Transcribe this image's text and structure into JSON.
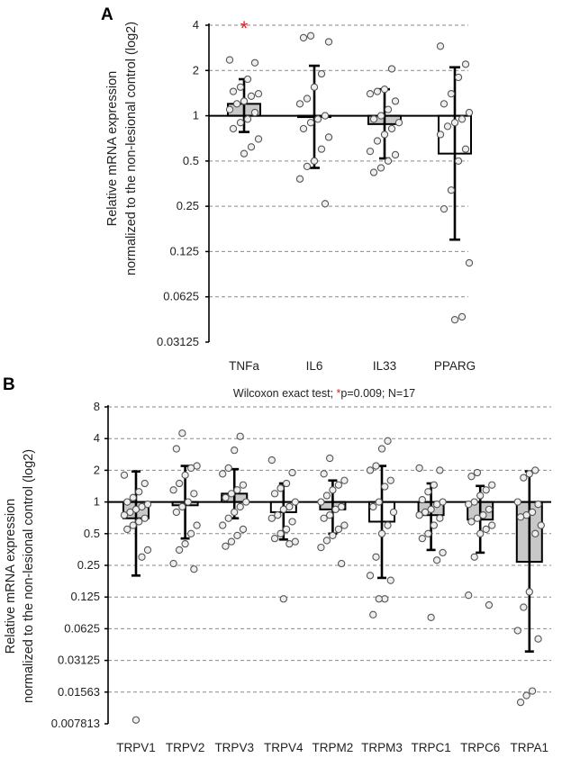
{
  "chart_data": [
    {
      "panel": "A",
      "type": "bar",
      "scale": "log2",
      "ylabel_lines": [
        "Relative mRNA expression",
        "normalized to the non-lesional control (log2)"
      ],
      "ytick_values": [
        0.03125,
        0.0625,
        0.125,
        0.25,
        0.5,
        1,
        2,
        4
      ],
      "ytick_labels": [
        "0.03125",
        "0.0625",
        "0.125",
        "0.25",
        "0.5",
        "1",
        "2",
        "4"
      ],
      "ylim": [
        0.03125,
        4
      ],
      "baseline": 1,
      "categories": [
        "TNFa",
        "IL6",
        "IL33",
        "PPARG"
      ],
      "values": [
        1.2,
        1.0,
        0.88,
        0.56
      ],
      "err_low": [
        0.78,
        0.45,
        0.52,
        0.15
      ],
      "err_high": [
        1.75,
        2.15,
        1.5,
        2.1
      ],
      "bar_fill": [
        "#c8c8c8",
        "#ffffff",
        "#c8c8c8",
        "#ffffff"
      ],
      "significance": [
        "*",
        "",
        "",
        ""
      ],
      "points": [
        [
          2.35,
          2.25,
          1.75,
          1.55,
          1.45,
          1.4,
          1.35,
          1.25,
          1.2,
          1.1,
          1.05,
          0.95,
          0.9,
          0.82,
          0.7,
          0.62,
          0.56
        ],
        [
          3.4,
          3.3,
          3.1,
          1.9,
          1.55,
          1.3,
          1.2,
          1.0,
          0.95,
          0.9,
          0.82,
          0.72,
          0.6,
          0.5,
          0.46,
          0.38,
          0.26
        ],
        [
          2.05,
          1.5,
          1.45,
          1.4,
          1.25,
          1.1,
          1.0,
          0.95,
          0.9,
          0.82,
          0.75,
          0.68,
          0.58,
          0.55,
          0.5,
          0.45,
          0.42
        ],
        [
          2.9,
          2.2,
          1.8,
          1.4,
          1.2,
          1.05,
          0.95,
          0.9,
          0.85,
          0.75,
          0.6,
          0.5,
          0.32,
          0.24,
          0.105,
          0.046,
          0.044
        ]
      ]
    },
    {
      "panel": "B",
      "type": "bar",
      "scale": "log2",
      "caption_prefix": "Wilcoxon exact test; ",
      "caption_star": "*",
      "caption_rest": "p=0.009; N=17",
      "ylabel_lines": [
        "Relative mRNA expression",
        "normalized to the non-lesional control (log2)"
      ],
      "ytick_values": [
        0.007813,
        0.01563,
        0.03125,
        0.0625,
        0.125,
        0.25,
        0.5,
        1,
        2,
        4,
        8
      ],
      "ytick_labels": [
        "0.007813",
        "0.01563",
        "0.03125",
        "0.0625",
        "0.125",
        "0.25",
        "0.5",
        "1",
        "2",
        "4",
        "8"
      ],
      "ylim": [
        0.007813,
        8
      ],
      "baseline": 1,
      "categories": [
        "TRPV1",
        "TRPV2",
        "TRPV3",
        "TRPV4",
        "TRPM2",
        "TRPM3",
        "TRPC1",
        "TRPC6",
        "TRPA1"
      ],
      "values": [
        0.7,
        0.93,
        1.2,
        0.8,
        0.85,
        0.65,
        0.75,
        0.68,
        0.27
      ],
      "err_low": [
        0.2,
        0.45,
        0.7,
        0.44,
        0.5,
        0.19,
        0.35,
        0.33,
        0.038
      ],
      "err_high": [
        1.95,
        2.2,
        2.05,
        1.5,
        1.6,
        2.2,
        1.5,
        1.42,
        1.95
      ],
      "bar_fill": [
        "#c8c8c8",
        "#c8c8c8",
        "#c8c8c8",
        "#ffffff",
        "#c8c8c8",
        "#ffffff",
        "#c8c8c8",
        "#c8c8c8",
        "#c8c8c8"
      ],
      "points": [
        [
          1.8,
          1.5,
          1.25,
          1.1,
          1.0,
          0.95,
          0.9,
          0.85,
          0.8,
          0.75,
          0.7,
          0.65,
          0.6,
          0.55,
          0.35,
          0.3,
          0.0085
        ],
        [
          4.5,
          3.2,
          2.2,
          2.1,
          1.8,
          1.5,
          1.3,
          1.2,
          1.0,
          0.9,
          0.8,
          0.6,
          0.5,
          0.4,
          0.35,
          0.26,
          0.23
        ],
        [
          4.2,
          3.1,
          2.1,
          1.85,
          1.45,
          1.3,
          1.2,
          1.1,
          1.0,
          0.9,
          0.8,
          0.7,
          0.6,
          0.55,
          0.48,
          0.42,
          0.38
        ],
        [
          2.5,
          1.9,
          1.5,
          1.35,
          1.2,
          1.0,
          0.9,
          0.85,
          0.75,
          0.7,
          0.65,
          0.55,
          0.5,
          0.45,
          0.42,
          0.4,
          0.12
        ],
        [
          2.6,
          1.85,
          1.6,
          1.45,
          1.3,
          1.15,
          1.0,
          0.9,
          0.85,
          0.75,
          0.7,
          0.6,
          0.55,
          0.48,
          0.43,
          0.37,
          0.26
        ],
        [
          3.8,
          3.2,
          2.2,
          2.0,
          1.6,
          1.4,
          1.0,
          0.9,
          0.8,
          0.6,
          0.5,
          0.3,
          0.2,
          0.18,
          0.12,
          0.12,
          0.085
        ],
        [
          2.1,
          2.0,
          1.45,
          1.25,
          1.05,
          1.0,
          0.95,
          0.85,
          0.8,
          0.75,
          0.7,
          0.6,
          0.5,
          0.45,
          0.33,
          0.28,
          0.08
        ],
        [
          1.9,
          1.75,
          1.45,
          1.3,
          1.15,
          1.0,
          0.95,
          0.85,
          0.75,
          0.7,
          0.65,
          0.6,
          0.55,
          0.5,
          0.3,
          0.13,
          0.105
        ],
        [
          2.0,
          1.85,
          1.7,
          1.0,
          0.95,
          0.8,
          0.75,
          0.72,
          0.6,
          0.5,
          0.14,
          0.1,
          0.06,
          0.05,
          0.016,
          0.0145,
          0.0125
        ]
      ]
    }
  ],
  "colors": {
    "axis": "#000000",
    "grid": "#8a8a8a",
    "bar_grey": "#c8c8c8",
    "point_fill": "#eeeeee",
    "point_stroke": "#555555",
    "significance": "#e02020"
  }
}
